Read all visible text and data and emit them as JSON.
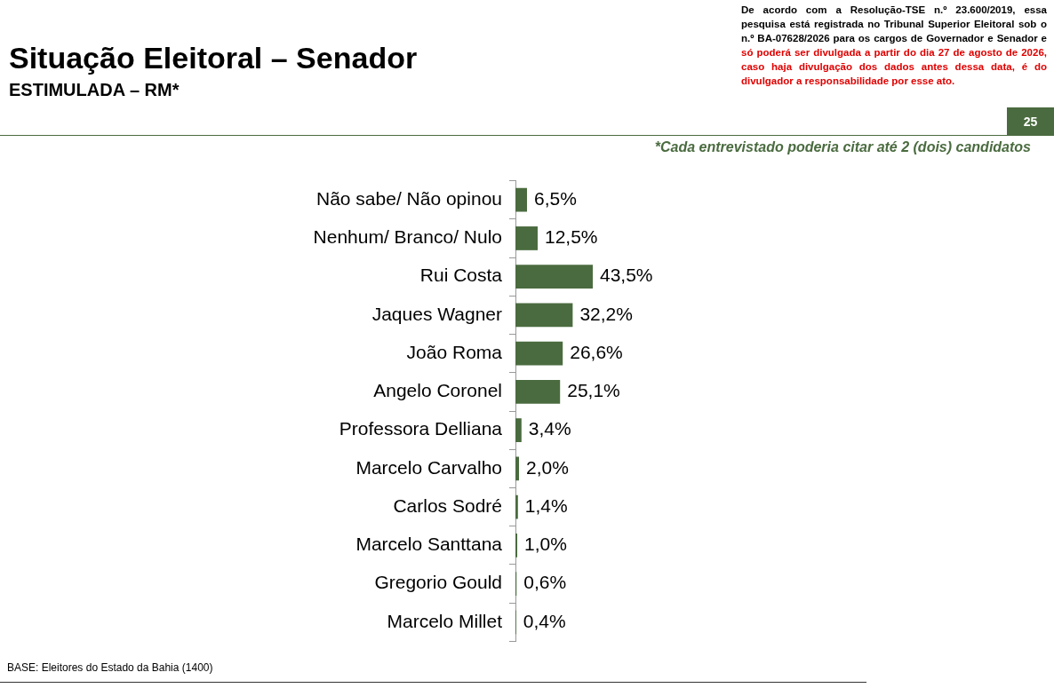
{
  "chart_data": {
    "type": "bar",
    "orientation": "horizontal",
    "title": "Situação Eleitoral – Senador",
    "subtitle": "ESTIMULADA – RM*",
    "categories": [
      "Não sabe/ Não opinou",
      "Nenhum/ Branco/ Nulo",
      "Rui Costa",
      "Jaques Wagner",
      "João Roma",
      "Angelo Coronel",
      "Professora Delliana",
      "Marcelo Carvalho",
      "Carlos Sodré",
      "Marcelo Santtana",
      "Gregorio Gould",
      "Marcelo Millet"
    ],
    "values": [
      6.5,
      12.5,
      43.5,
      32.2,
      26.6,
      25.1,
      3.4,
      2.0,
      1.4,
      1.0,
      0.6,
      0.4
    ],
    "value_labels": [
      "6,5%",
      "12,5%",
      "43,5%",
      "32,2%",
      "26,6%",
      "25,1%",
      "3,4%",
      "2,0%",
      "1,4%",
      "1,0%",
      "0,6%",
      "0,4%"
    ],
    "color": "#4a6b3f",
    "tick_labels": "y",
    "legend": false,
    "annotations": [
      "De acordo com a Resolução-TSE n.º 23.600/2019, essa pesquisa está registrada no Tribunal Superior Eleitoral sob o n.º BA-07628/2026 para os cargos de Governador e Senador e",
      "só poderá ser divulgada a partir do dia 27 de agosto de 2026, caso haja divulgação dos dados antes dessa data, é do divulgador a responsabilidade por esse ato.",
      "25",
      "*Cada entrevistado poderia citar até 2 (dois) candidatos",
      "BASE: Eleitores do Estado da Bahia (1400)"
    ]
  }
}
